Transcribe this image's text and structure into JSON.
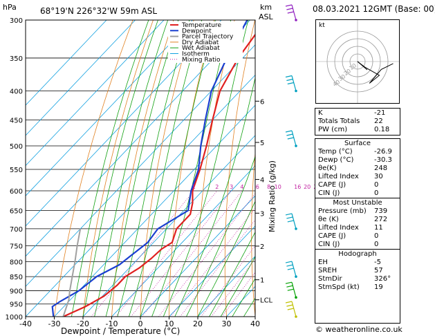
{
  "header": {
    "units_hpa": "hPa",
    "location": "68°19'N  226°32'W  59m  ASL",
    "units_km": "km",
    "units_asl": "ASL",
    "datetime": "08.03.2021  12GMT  (Base: 00)"
  },
  "chart_data": {
    "type": "line",
    "xlabel": "Dewpoint / Temperature (°C)",
    "ylabel_right": "Mixing Ratio (g/kg)",
    "x_ticks": [
      -40,
      -30,
      -20,
      -10,
      0,
      10,
      20,
      30,
      40
    ],
    "xlim": [
      -40,
      40
    ],
    "y_scale": "log",
    "pressure_levels": [
      300,
      350,
      400,
      450,
      500,
      550,
      600,
      650,
      700,
      750,
      800,
      850,
      900,
      950,
      1000
    ],
    "ylim": [
      1000,
      300
    ],
    "km_ticks": [
      {
        "p": 417,
        "label": "6"
      },
      {
        "p": 493,
        "label": "5"
      },
      {
        "p": 573,
        "label": "4"
      },
      {
        "p": 657,
        "label": "3"
      },
      {
        "p": 751,
        "label": "2"
      },
      {
        "p": 861,
        "label": "1"
      },
      {
        "p": 934,
        "label": "LCL"
      }
    ],
    "mixing_ratio_labels": [
      "1",
      "2",
      "3",
      "4",
      "6",
      "8",
      "10",
      "16",
      "20",
      "25"
    ],
    "mixing_ratio_values": [
      1,
      2,
      3,
      4,
      6,
      8,
      10,
      16,
      20,
      25
    ],
    "mixing_ratio_label_p": 600,
    "legend": [
      "Temperature",
      "Dewpoint",
      "Parcel Trajectory",
      "Dry Adiabat",
      "Wet Adiabat",
      "Isotherm",
      "Mixing Ratio"
    ],
    "legend_placement": "top-left",
    "series": [
      {
        "name": "Temperature",
        "color": "#e02020",
        "points": [
          [
            1000,
            -26.9
          ],
          [
            960,
            -22.5
          ],
          [
            920,
            -19.5
          ],
          [
            880,
            -18.5
          ],
          [
            850,
            -18.5
          ],
          [
            820,
            -16.5
          ],
          [
            790,
            -15.5
          ],
          [
            760,
            -15.0
          ],
          [
            740,
            -13.5
          ],
          [
            700,
            -16.5
          ],
          [
            660,
            -16.5
          ],
          [
            630,
            -19.5
          ],
          [
            600,
            -23.5
          ],
          [
            550,
            -28.0
          ],
          [
            500,
            -33.5
          ],
          [
            450,
            -40.0
          ],
          [
            400,
            -47.0
          ],
          [
            350,
            -51.5
          ],
          [
            300,
            -54.5
          ]
        ]
      },
      {
        "name": "Dewpoint",
        "color": "#1a3fd0",
        "points": [
          [
            1000,
            -30.3
          ],
          [
            960,
            -34.0
          ],
          [
            940,
            -33.0
          ],
          [
            900,
            -30.0
          ],
          [
            850,
            -28.5
          ],
          [
            810,
            -24.5
          ],
          [
            780,
            -23.5
          ],
          [
            740,
            -22.0
          ],
          [
            700,
            -23.0
          ],
          [
            650,
            -18.5
          ],
          [
            600,
            -24.0
          ],
          [
            550,
            -28.5
          ],
          [
            500,
            -35.5
          ],
          [
            450,
            -42.5
          ],
          [
            400,
            -50.0
          ],
          [
            350,
            -55.5
          ],
          [
            300,
            -61.0
          ]
        ]
      },
      {
        "name": "Parcel Trajectory",
        "color": "#a0a0a0",
        "points": [
          [
            1000,
            -26.9
          ],
          [
            934,
            -30.5
          ],
          [
            900,
            -33.2
          ],
          [
            850,
            -37.0
          ],
          [
            800,
            -41.0
          ],
          [
            750,
            -45.5
          ],
          [
            700,
            -50.0
          ]
        ]
      }
    ],
    "hodograph": {
      "label": "kt",
      "ring_labels": [
        "10",
        "20",
        "30",
        "40"
      ],
      "points_uv_kt": [
        [
          0,
          0
        ],
        [
          4,
          -3
        ],
        [
          11,
          -7
        ],
        [
          6,
          -11
        ],
        [
          12,
          -4
        ],
        [
          18,
          -1
        ]
      ]
    },
    "wind_barbs": [
      {
        "p": 300,
        "color": "#9020c0"
      },
      {
        "p": 400,
        "color": "#00a0c0"
      },
      {
        "p": 500,
        "color": "#00a0c0"
      },
      {
        "p": 700,
        "color": "#00a0c0"
      },
      {
        "p": 850,
        "color": "#00a0c0"
      },
      {
        "p": 925,
        "color": "#00a000"
      },
      {
        "p": 1000,
        "color": "#c0c000"
      }
    ]
  },
  "indices": {
    "k": {
      "label": "K",
      "value": "-21"
    },
    "tt": {
      "label": "Totals Totals",
      "value": "22"
    },
    "pw": {
      "label": "PW (cm)",
      "value": "0.18"
    }
  },
  "surface": {
    "title": "Surface",
    "temp": {
      "label": "Temp (°C)",
      "value": "-26.9"
    },
    "dewp": {
      "label": "Dewp (°C)",
      "value": "-30.3"
    },
    "theta_e": {
      "label": "θe(K)",
      "value": "248"
    },
    "li": {
      "label": "Lifted Index",
      "value": "30"
    },
    "cape": {
      "label": "CAPE (J)",
      "value": "0"
    },
    "cin": {
      "label": "CIN (J)",
      "value": "0"
    }
  },
  "most_unstable": {
    "title": "Most Unstable",
    "pressure": {
      "label": "Pressure (mb)",
      "value": "739"
    },
    "theta_e": {
      "label": "θe (K)",
      "value": "272"
    },
    "li": {
      "label": "Lifted Index",
      "value": "11"
    },
    "cape": {
      "label": "CAPE (J)",
      "value": "0"
    },
    "cin": {
      "label": "CIN (J)",
      "value": "0"
    }
  },
  "hodograph_stats": {
    "title": "Hodograph",
    "eh": {
      "label": "EH",
      "value": "-5"
    },
    "sreh": {
      "label": "SREH",
      "value": "57"
    },
    "stmdir": {
      "label": "StmDir",
      "value": "326°"
    },
    "stmspd": {
      "label": "StmSpd (kt)",
      "value": "19"
    }
  },
  "footer": "© weatheronline.co.uk",
  "colors": {
    "temperature": "#e02020",
    "dewpoint": "#1a3fd0",
    "parcel": "#a0a0a0",
    "dry_adiabat": "#e08020",
    "wet_adiabat": "#10a010",
    "isotherm": "#10a0e0",
    "mixing_ratio": "#c020a0"
  }
}
